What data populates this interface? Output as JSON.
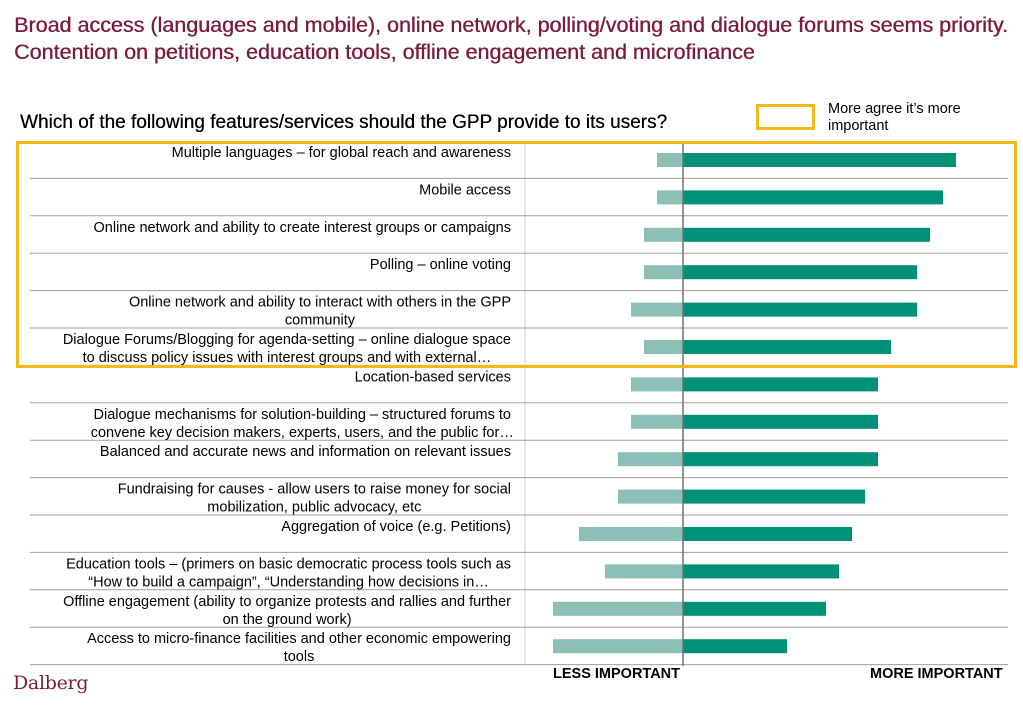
{
  "title": "Broad  access (languages and mobile), online network, polling/voting and dialogue forums seems priority. Contention on petitions, education tools, offline engagement and microfinance",
  "question": "Which of the following features/services should the GPP provide to its users?",
  "legend": {
    "text": "More agree  it’s more important",
    "color": "#f2b918"
  },
  "axis": {
    "left_label": "LESS IMPORTANT",
    "right_label": "MORE  IMPORTANT"
  },
  "logo": "Dalberg",
  "colors": {
    "less": "#8cbfb5",
    "more": "#009178",
    "title": "#7b1c3e",
    "highlight": "#f2b918"
  },
  "chart_data": {
    "type": "bar",
    "orientation": "horizontal-diverging",
    "categories": [
      [
        "Multiple languages – for global reach and awareness"
      ],
      [
        "Mobile access"
      ],
      [
        "Online network and ability to create interest groups or campaigns"
      ],
      [
        "Polling – online voting"
      ],
      [
        "Online network and ability to interact with others in the GPP",
        "community"
      ],
      [
        "Dialogue Forums/Blogging for agenda-setting – online dialogue space",
        "to discuss policy issues with interest groups and with external…"
      ],
      [
        "Location-based services"
      ],
      [
        "Dialogue mechanisms for solution-building – structured forums to",
        "convene key decision makers, experts, users, and the public for…"
      ],
      [
        "Balanced and accurate news and information on relevant issues"
      ],
      [
        "Fundraising for causes - allow users to raise money for social",
        "mobilization, public advocacy, etc"
      ],
      [
        "Aggregation of voice (e.g. Petitions)"
      ],
      [
        "Education tools – (primers on basic democratic process tools such as",
        "“How to build a campaign”, “Understanding how decisions in…"
      ],
      [
        "Offline engagement (ability to organize protests and rallies and further",
        "on the ground work)"
      ],
      [
        "Access to micro-finance facilities and other economic empowering",
        "tools"
      ]
    ],
    "series": [
      {
        "values": [
          2,
          2,
          3,
          3,
          4,
          3,
          4,
          4,
          5,
          5,
          8,
          6,
          10,
          10
        ]
      },
      {
        "values": [
          21,
          20,
          19,
          18,
          18,
          16,
          15,
          15,
          15,
          14,
          13,
          12,
          11,
          8
        ]
      }
    ],
    "highlighted_count": 6
  }
}
